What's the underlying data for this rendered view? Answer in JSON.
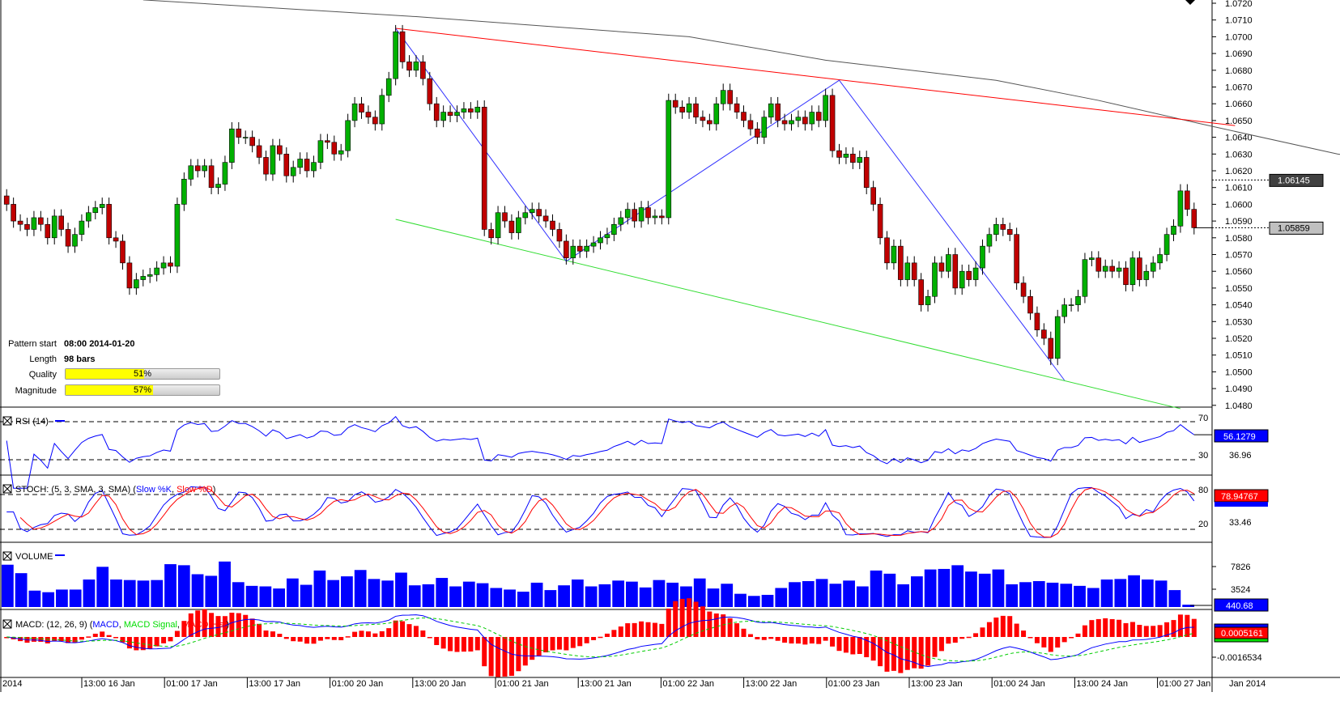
{
  "info": {
    "pattern_start_label": "Pattern start",
    "pattern_start": "08:00 2014-01-20",
    "length_label": "Length",
    "length": "98 bars",
    "quality_label": "Quality",
    "quality": 51,
    "quality_text": "51%",
    "magnitude_label": "Magnitude",
    "magnitude": 57,
    "magnitude_text": "57%"
  },
  "chart_data": {
    "type": "candlestick",
    "ylim": [
      1.048,
      1.072
    ],
    "price_ticks": [
      "1.0720",
      "1.0710",
      "1.0700",
      "1.0690",
      "1.0680",
      "1.0670",
      "1.0660",
      "1.0650",
      "1.0640",
      "1.0630",
      "1.0620",
      "1.0610",
      "1.0600",
      "1.0590",
      "1.0580",
      "1.0570",
      "1.0560",
      "1.0550",
      "1.0540",
      "1.0530",
      "1.0520",
      "1.0510",
      "1.0500",
      "1.0490",
      "1.0480"
    ],
    "close": [
      1.06,
      1.059,
      1.0588,
      1.0585,
      1.0592,
      1.0588,
      1.058,
      1.0593,
      1.0585,
      1.0575,
      1.0582,
      1.059,
      1.0595,
      1.0598,
      1.06,
      1.058,
      1.0578,
      1.0565,
      1.055,
      1.0555,
      1.0557,
      1.0558,
      1.0562,
      1.0565,
      1.0563,
      1.06,
      1.0615,
      1.0623,
      1.062,
      1.0623,
      1.061,
      1.0612,
      1.0625,
      1.0645,
      1.064,
      1.064,
      1.0635,
      1.0628,
      1.0618,
      1.0635,
      1.063,
      1.0617,
      1.0622,
      1.0627,
      1.062,
      1.0625,
      1.0638,
      1.0637,
      1.063,
      1.0632,
      1.065,
      1.066,
      1.0655,
      1.0652,
      1.0648,
      1.0665,
      1.0675,
      1.0703,
      1.0685,
      1.068,
      1.0685,
      1.0675,
      1.066,
      1.065,
      1.0655,
      1.0653,
      1.0655,
      1.0657,
      1.0655,
      1.0658,
      1.0585,
      1.058,
      1.0595,
      1.059,
      1.0583,
      1.0592,
      1.0595,
      1.0597,
      1.0593,
      1.059,
      1.0585,
      1.0578,
      1.0568,
      1.0575,
      1.0572,
      1.0575,
      1.0577,
      1.058,
      1.0582,
      1.0588,
      1.0592,
      1.0597,
      1.059,
      1.0598,
      1.0592,
      1.0593,
      1.0592,
      1.0662,
      1.0658,
      1.0655,
      1.066,
      1.0652,
      1.065,
      1.0648,
      1.066,
      1.0668,
      1.066,
      1.0655,
      1.065,
      1.0645,
      1.064,
      1.0652,
      1.066,
      1.065,
      1.0648,
      1.065,
      1.0652,
      1.0648,
      1.0655,
      1.065,
      1.0665,
      1.0632,
      1.0628,
      1.063,
      1.0625,
      1.0628,
      1.061,
      1.06,
      1.058,
      1.0565,
      1.0575,
      1.0555,
      1.0565,
      1.0555,
      1.054,
      1.0545,
      1.0565,
      1.056,
      1.057,
      1.055,
      1.056,
      1.0555,
      1.0562,
      1.0575,
      1.0582,
      1.0588,
      1.0585,
      1.0582,
      1.0553,
      1.0545,
      1.0535,
      1.0525,
      1.052,
      1.0508,
      1.0533,
      1.054,
      1.054,
      1.0545,
      1.0567,
      1.0568,
      1.056,
      1.0563,
      1.056,
      1.0562,
      1.0552,
      1.0568,
      1.0555,
      1.056,
      1.0565,
      1.057,
      1.0582,
      1.0587,
      1.0608,
      1.0597,
      1.0586
    ],
    "moving_average": [
      [
        20,
        1.0722
      ],
      [
        60,
        1.0712
      ],
      [
        100,
        1.07
      ],
      [
        120,
        1.0686
      ],
      [
        145,
        1.0674
      ],
      [
        160,
        1.0662
      ],
      [
        175,
        1.0648
      ],
      [
        195,
        1.063
      ],
      [
        215,
        1.0618
      ],
      [
        235,
        1.06145
      ]
    ],
    "resistance_line": [
      [
        57,
        1.0705
      ],
      [
        180,
        1.0647
      ]
    ],
    "support_line": [
      [
        57,
        1.0591
      ],
      [
        172,
        1.0478
      ]
    ],
    "zigzag": [
      [
        57,
        1.0705
      ],
      [
        82,
        1.0566
      ],
      [
        122,
        1.0674
      ],
      [
        155,
        1.0495
      ]
    ],
    "current_labels": {
      "ma": "1.06145",
      "price": "1.05859"
    },
    "colors": {
      "up": "#00b000",
      "down": "#c00000",
      "ma": "#555555",
      "resistance": "#ff0000",
      "support": "#33dd33",
      "zigzag": "#3333ff"
    },
    "time_labels": [
      "2014",
      "13:00 16 Jan",
      "01:00 17 Jan",
      "13:00 17 Jan",
      "01:00 20 Jan",
      "13:00 20 Jan",
      "01:00 21 Jan",
      "13:00 21 Jan",
      "01:00 22 Jan",
      "13:00 22 Jan",
      "01:00 23 Jan",
      "13:00 23 Jan",
      "01:00 24 Jan",
      "13:00 24 Jan",
      "01:00 27 Jan"
    ],
    "time_axis_right": "Jan 2014",
    "rsi": {
      "title": "RSI (14)",
      "levels": [
        "70",
        "30"
      ],
      "value": "56.1279",
      "tick": "36.96"
    },
    "stoch": {
      "title": "STOCH: (5, 3, SMA, 3, SMA) (",
      "k": "Slow %K",
      "sep": ", ",
      "d": "Slow %D",
      "close": ")",
      "levels": [
        "80",
        "20"
      ],
      "value": "78.94767",
      "tick": "33.46"
    },
    "volume": {
      "title": "VOLUME",
      "ticks": [
        "7826",
        "3524"
      ],
      "value": "440.68",
      "values": [
        8000,
        6400,
        3100,
        2800,
        3300,
        3300,
        5200,
        7600,
        5200,
        5100,
        5000,
        5100,
        8100,
        7900,
        6200,
        5900,
        8600,
        4700,
        4000,
        3900,
        3500,
        5400,
        4200,
        6900,
        5100,
        5800,
        7000,
        5300,
        5000,
        6500,
        4100,
        4300,
        5500,
        3900,
        4800,
        4500,
        3600,
        3300,
        2900,
        4600,
        3200,
        4100,
        5200,
        3900,
        4300,
        5000,
        4800,
        3700,
        5100,
        4600,
        3900,
        5400,
        3500,
        4400,
        2500,
        2100,
        2300,
        3600,
        4700,
        4900,
        5300,
        4400,
        5000,
        3900,
        6900,
        6300,
        4300,
        5800,
        7100,
        7200,
        7900,
        6700,
        6300,
        7100,
        4300,
        4700,
        4900,
        4600,
        4400,
        4000,
        3600,
        5200,
        5300,
        6000,
        5200,
        5000,
        3200,
        440
      ]
    },
    "macd": {
      "title": "MACD: (12, 26, 9) (",
      "macd": "MACD",
      "sep": ", ",
      "signal": "MACD Signal",
      "sep2": ", ",
      "hist": "MACD Hist",
      "close": ")",
      "value": "0.0005161",
      "tick": "-0.0016534"
    }
  }
}
